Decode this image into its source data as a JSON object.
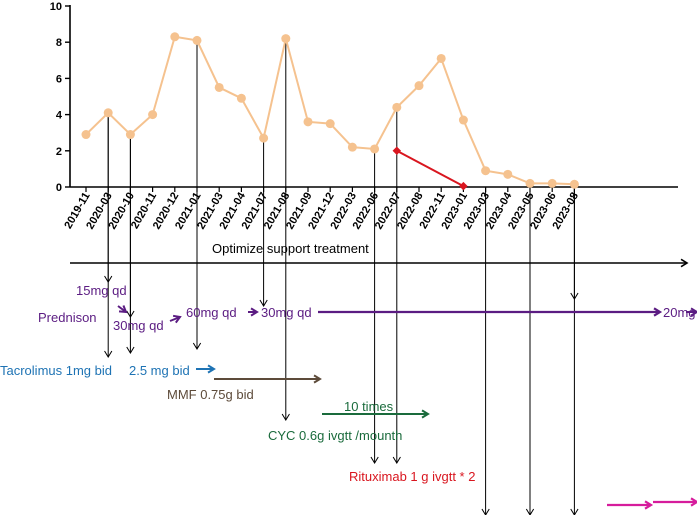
{
  "colors": {
    "line": "#f5c28f",
    "marker": "#f5c28f",
    "red": "#d9161f",
    "purple": "#5b1c82",
    "blue": "#1e73b4",
    "brown": "#5d4b3a",
    "green": "#1a6b3c",
    "red_text": "#d9161f",
    "magenta": "#d61c9c",
    "black": "#000000"
  },
  "chart_data": {
    "type": "line",
    "categories": [
      "2019-11",
      "2020-03",
      "2020-10",
      "2020-11",
      "2020-12",
      "2021-01",
      "2021-03",
      "2021-04",
      "2021-07",
      "2021-08",
      "2021-09",
      "2021-12",
      "2022-03",
      "2022-06",
      "2022-07",
      "2022-08",
      "2022-11",
      "2023-01",
      "2023-03",
      "2023-04",
      "2023-05",
      "2023-06",
      "2023-08"
    ],
    "series": [
      {
        "values": [
          2.9,
          4.1,
          2.9,
          4.0,
          8.3,
          8.1,
          5.5,
          4.9,
          2.7,
          8.2,
          3.6,
          3.5,
          2.2,
          2.1,
          4.4,
          5.6,
          7.1,
          3.7,
          0.9,
          0.7,
          0.2,
          0.2,
          0.15
        ]
      }
    ],
    "red_segment": {
      "x_from": "2022-07",
      "y_from": 2.0,
      "x_to": "2023-01",
      "y_to": 0.05
    },
    "y_ticks": [
      "0",
      "2",
      "4",
      "6",
      "8",
      "10"
    ],
    "ylim": [
      0,
      10
    ],
    "grid": false
  },
  "annotations": {
    "support": "Optimize support treatment",
    "pred_15": "15mg qd",
    "prednison": "Prednison",
    "pred_30a": "30mg qd",
    "pred_60": "60mg qd",
    "pred_30b": "30mg qd",
    "pred_20": "20mg",
    "tacrolimus": "Tacrolimus 1mg bid",
    "tac_25": "2.5 mg bid",
    "mmf": "MMF 0.75g bid",
    "cyc_times": "10 times",
    "cyc": "CYC 0.6g ivgtt /mounth",
    "rituximab": "Rituximab  1 g ivgtt * 2"
  }
}
